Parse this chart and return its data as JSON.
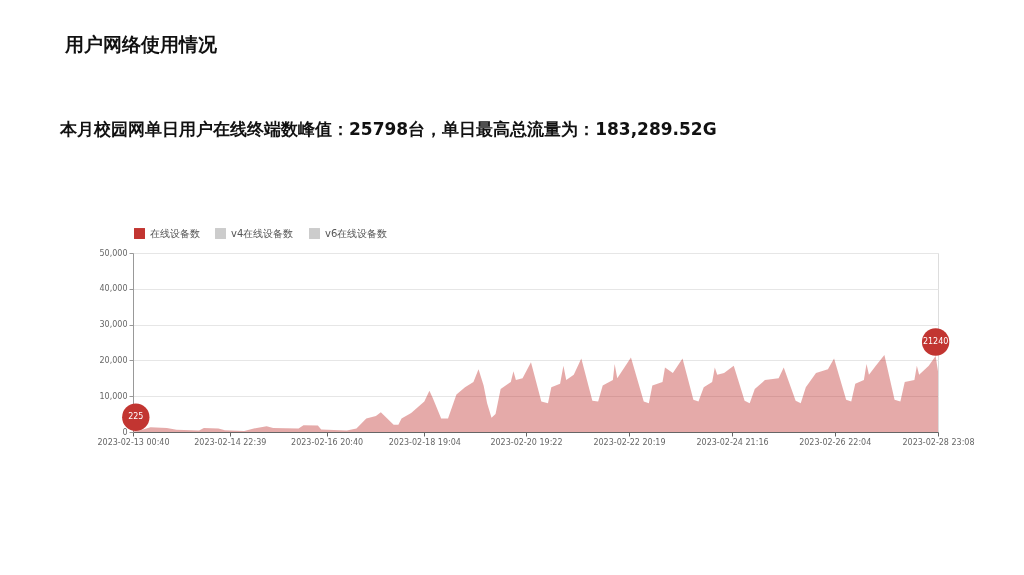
{
  "chart_data": {
    "type": "area",
    "title": "用户网络使用情况",
    "subtitle": "本月校园网单日用户在线终端数峰值：25798台，单日最高总流量为：183,289.52G",
    "x": [
      "2023-02-13T00:40",
      "2023-02-13T03:00",
      "2023-02-13T09:00",
      "2023-02-13T16:45",
      "2023-02-13T21:20",
      "2023-02-14T08:05",
      "2023-02-14T10:20",
      "2023-02-14T17:15",
      "2023-02-14T20:20",
      "2023-02-15T05:30",
      "2023-02-15T10:05",
      "2023-02-15T16:10",
      "2023-02-15T19:15",
      "2023-02-16T07:20",
      "2023-02-16T09:40",
      "2023-02-16T16:30",
      "2023-02-16T18:05",
      "2023-02-17T06:15",
      "2023-02-17T10:50",
      "2023-02-17T15:30",
      "2023-02-17T20:05",
      "2023-02-17T22:25",
      "2023-02-18T04:30",
      "2023-02-18T06:45",
      "2023-02-18T08:15",
      "2023-02-18T12:50",
      "2023-02-18T19:04",
      "2023-02-18T21:30",
      "2023-02-18T23:05",
      "2023-02-19T03:05",
      "2023-02-19T06:20",
      "2023-02-19T10:20",
      "2023-02-19T14:25",
      "2023-02-19T18:25",
      "2023-02-19T20:50",
      "2023-02-19T23:15",
      "2023-02-20T00:55",
      "2023-02-20T03:00",
      "2023-02-20T04:55",
      "2023-02-20T07:20",
      "2023-02-20T12:10",
      "2023-02-20T13:25",
      "2023-02-20T14:35",
      "2023-02-20T17:45",
      "2023-02-20T21:45",
      "2023-02-21T02:40",
      "2023-02-21T05:50",
      "2023-02-21T07:25",
      "2023-02-21T11:35",
      "2023-02-21T13:10",
      "2023-02-21T14:30",
      "2023-02-21T18:05",
      "2023-02-21T21:40",
      "2023-02-22T02:55",
      "2023-02-22T05:40",
      "2023-02-22T07:50",
      "2023-02-22T12:40",
      "2023-02-22T13:30",
      "2023-02-22T14:45",
      "2023-02-22T21:15",
      "2023-02-23T03:20",
      "2023-02-23T05:45",
      "2023-02-23T07:25",
      "2023-02-23T12:15",
      "2023-02-23T13:25",
      "2023-02-23T17:10",
      "2023-02-23T21:45",
      "2023-02-24T02:55",
      "2023-02-24T05:20",
      "2023-02-24T07:50",
      "2023-02-24T11:50",
      "2023-02-24T13:05",
      "2023-02-24T14:15",
      "2023-02-24T17:30",
      "2023-02-24T22:05",
      "2023-02-25T03:15",
      "2023-02-25T05:40",
      "2023-02-25T08:05",
      "2023-02-25T12:55",
      "2023-02-25T19:25",
      "2023-02-25T21:50",
      "2023-02-26T03:30",
      "2023-02-26T05:55",
      "2023-02-26T08:20",
      "2023-02-26T13:10",
      "2023-02-26T18:50",
      "2023-02-26T21:45",
      "2023-02-27T03:30",
      "2023-02-27T05:55",
      "2023-02-27T07:50",
      "2023-02-27T11:55",
      "2023-02-27T13:10",
      "2023-02-27T14:20",
      "2023-02-27T17:35",
      "2023-02-27T21:40",
      "2023-02-28T02:30",
      "2023-02-28T05:15",
      "2023-02-28T07:20",
      "2023-02-28T11:55",
      "2023-02-28T13:05",
      "2023-02-28T14:10",
      "2023-02-28T18:45",
      "2023-02-28T22:00",
      "2023-02-28T23:08"
    ],
    "series": [
      {
        "name": "在线设备数",
        "color": "#c23531",
        "values": [
          225,
          300,
          1300,
          1100,
          600,
          400,
          1100,
          1000,
          500,
          300,
          1000,
          1600,
          1100,
          1000,
          1900,
          1800,
          700,
          400,
          1000,
          3800,
          4500,
          5500,
          2000,
          2000,
          3800,
          5300,
          8500,
          11500,
          9500,
          3800,
          3800,
          10500,
          12500,
          14000,
          17500,
          13000,
          8000,
          4000,
          5000,
          12000,
          14000,
          17000,
          14500,
          15000,
          19500,
          8500,
          8000,
          12500,
          13500,
          18500,
          14500,
          16000,
          20500,
          8700,
          8500,
          13000,
          14500,
          19000,
          15000,
          20800,
          8500,
          8000,
          13000,
          14000,
          18000,
          16500,
          20500,
          9000,
          8500,
          12500,
          14000,
          18000,
          16000,
          16500,
          18500,
          8700,
          8000,
          12000,
          14500,
          15000,
          18000,
          8700,
          8000,
          12500,
          16500,
          17500,
          20500,
          9000,
          8500,
          13500,
          14500,
          19000,
          16000,
          18500,
          21500,
          9000,
          8500,
          14000,
          14500,
          18500,
          16000,
          18500,
          21240,
          17000
        ]
      },
      {
        "name": "v4在线设备数",
        "color": "#cccccc",
        "values": [
          null,
          null,
          null,
          null,
          null,
          null,
          null,
          null,
          null,
          null,
          null,
          null,
          null,
          null,
          null,
          null,
          null,
          null,
          null,
          null,
          null,
          null,
          null,
          null,
          null,
          null,
          null,
          null,
          null,
          null,
          null,
          null,
          null,
          null,
          null,
          null,
          null,
          null,
          null,
          null,
          null,
          null,
          null,
          null,
          null,
          null,
          null,
          null,
          null,
          null,
          null,
          null,
          null,
          null,
          null,
          null,
          null,
          null,
          null,
          null,
          null,
          null,
          null,
          null,
          null,
          null,
          null,
          null,
          null,
          null,
          null,
          null,
          null,
          null,
          null,
          null,
          null,
          null,
          null,
          null,
          null,
          null,
          null,
          null,
          null,
          null,
          null,
          null,
          null,
          null,
          null,
          null,
          null,
          null,
          null,
          null,
          null,
          null,
          null,
          null,
          null,
          null,
          null,
          null
        ]
      },
      {
        "name": "v6在线设备数",
        "color": "#cccccc",
        "values": [
          null,
          null,
          null,
          null,
          null,
          null,
          null,
          null,
          null,
          null,
          null,
          null,
          null,
          null,
          null,
          null,
          null,
          null,
          null,
          null,
          null,
          null,
          null,
          null,
          null,
          null,
          null,
          null,
          null,
          null,
          null,
          null,
          null,
          null,
          null,
          null,
          null,
          null,
          null,
          null,
          null,
          null,
          null,
          null,
          null,
          null,
          null,
          null,
          null,
          null,
          null,
          null,
          null,
          null,
          null,
          null,
          null,
          null,
          null,
          null,
          null,
          null,
          null,
          null,
          null,
          null,
          null,
          null,
          null,
          null,
          null,
          null,
          null,
          null,
          null,
          null,
          null,
          null,
          null,
          null,
          null,
          null,
          null,
          null,
          null,
          null,
          null,
          null,
          null,
          null,
          null,
          null,
          null,
          null,
          null,
          null,
          null,
          null,
          null,
          null,
          null,
          null,
          null,
          null
        ]
      }
    ],
    "xlim": [
      "2023-02-13T00:40",
      "2023-02-28T23:08"
    ],
    "xticks": [
      {
        "value": "2023-02-13T00:40",
        "label": "2023-02-13 00:40"
      },
      {
        "value": "2023-02-14T22:39",
        "label": "2023-02-14 22:39"
      },
      {
        "value": "2023-02-16T20:40",
        "label": "2023-02-16 20:40"
      },
      {
        "value": "2023-02-18T19:04",
        "label": "2023-02-18 19:04"
      },
      {
        "value": "2023-02-20T19:22",
        "label": "2023-02-20 19:22"
      },
      {
        "value": "2023-02-22T20:19",
        "label": "2023-02-22 20:19"
      },
      {
        "value": "2023-02-24T21:16",
        "label": "2023-02-24 21:16"
      },
      {
        "value": "2023-02-26T22:04",
        "label": "2023-02-26 22:04"
      },
      {
        "value": "2023-02-28T23:08",
        "label": "2023-02-28 23:08"
      }
    ],
    "ylim": [
      0,
      50000
    ],
    "yticks": [
      {
        "value": 0,
        "label": "0"
      },
      {
        "value": 10000,
        "label": "10,000"
      },
      {
        "value": 20000,
        "label": "20,000"
      },
      {
        "value": 30000,
        "label": "30,000"
      },
      {
        "value": 40000,
        "label": "40,000"
      },
      {
        "value": 50000,
        "label": "50,000"
      }
    ],
    "annotations": [
      {
        "text": "225",
        "x": "2023-02-13T02:00",
        "y": 225
      },
      {
        "text": "21240",
        "x": "2023-02-28T22:00",
        "y": 21240
      }
    ],
    "grid": "y",
    "legend": "top"
  }
}
